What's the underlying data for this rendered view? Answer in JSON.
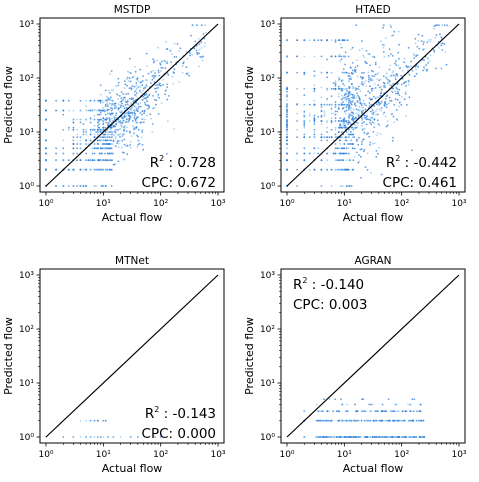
{
  "chart_data": [
    {
      "type": "scatter",
      "title": "MSTDP",
      "xlabel": "Actual flow",
      "ylabel": "Predicted flow",
      "xscale": "log",
      "yscale": "log",
      "xlim": [
        1,
        1000
      ],
      "ylim": [
        1,
        1000
      ],
      "xticks": [
        "10⁰",
        "10¹",
        "10²",
        "10³"
      ],
      "yticks": [
        "10⁰",
        "10¹",
        "10²",
        "10³"
      ],
      "reference_line": "y = x",
      "annotation_position": "bottom-right",
      "stats": {
        "r2_label": "R²",
        "r2_value": ": 0.728",
        "cpc_label": "CPC:",
        "cpc_value": "0.672"
      },
      "pattern": "strong",
      "grid": false
    },
    {
      "type": "scatter",
      "title": "HTAED",
      "xlabel": "Actual flow",
      "ylabel": "Predicted flow",
      "xscale": "log",
      "yscale": "log",
      "xlim": [
        1,
        1000
      ],
      "ylim": [
        1,
        1000
      ],
      "xticks": [
        "10⁰",
        "10¹",
        "10²",
        "10³"
      ],
      "yticks": [
        "10⁰",
        "10¹",
        "10²",
        "10³"
      ],
      "reference_line": "y = x",
      "annotation_position": "bottom-right",
      "stats": {
        "r2_label": "R²",
        "r2_value": ": -0.442",
        "cpc_label": "CPC:",
        "cpc_value": "0.461"
      },
      "pattern": "overpredict",
      "grid": false
    },
    {
      "type": "scatter",
      "title": "MTNet",
      "xlabel": "Actual flow",
      "ylabel": "Predicted flow",
      "xscale": "log",
      "yscale": "log",
      "xlim": [
        1,
        1000
      ],
      "ylim": [
        1,
        1000
      ],
      "xticks": [
        "10⁰",
        "10¹",
        "10²",
        "10³"
      ],
      "yticks": [
        "10⁰",
        "10¹",
        "10²",
        "10³"
      ],
      "reference_line": "y = x",
      "annotation_position": "bottom-right",
      "stats": {
        "r2_label": "R²",
        "r2_value": ": -0.143",
        "cpc_label": "CPC:",
        "cpc_value": "0.000"
      },
      "pattern": "sparse",
      "grid": false
    },
    {
      "type": "scatter",
      "title": "AGRAN",
      "xlabel": "Actual flow",
      "ylabel": "Predicted flow",
      "xscale": "log",
      "yscale": "log",
      "xlim": [
        1,
        1000
      ],
      "ylim": [
        1,
        1000
      ],
      "xticks": [
        "10⁰",
        "10¹",
        "10²",
        "10³"
      ],
      "yticks": [
        "10⁰",
        "10¹",
        "10²",
        "10³"
      ],
      "reference_line": "y = x",
      "annotation_position": "top-left",
      "stats": {
        "r2_label": "R²",
        "r2_value": ": -0.140",
        "cpc_label": "CPC:",
        "cpc_value": "0.003"
      },
      "pattern": "flat",
      "grid": false
    }
  ],
  "colors": {
    "points": "#2f7fd9",
    "points_light": "#8cc4ec",
    "identity_line": "#000000",
    "axes": "#000000"
  }
}
